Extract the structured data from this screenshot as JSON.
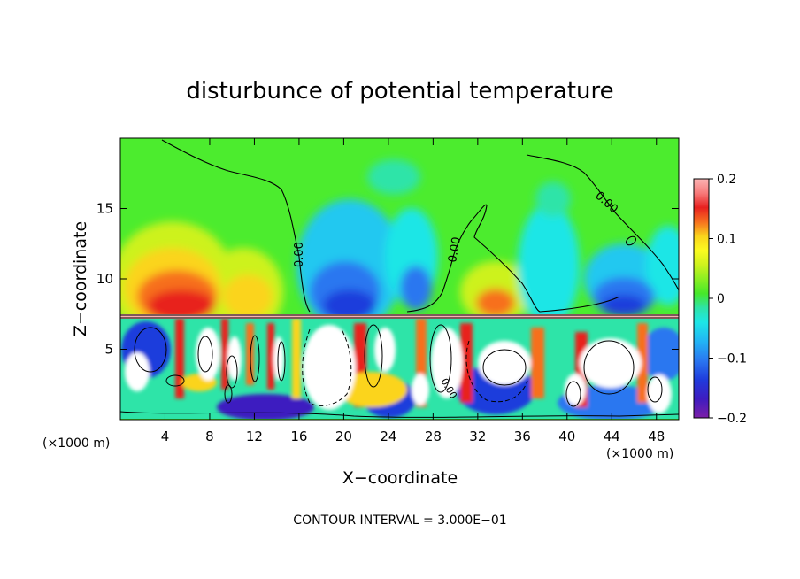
{
  "chart_data": {
    "type": "heatmap",
    "title": "disturbunce of potential temperature",
    "xlabel": "X−coordinate",
    "ylabel": "Z−coordinate",
    "x_unit_label_left": "(×1000 m)",
    "x_unit_label_right": "(×1000 m)",
    "xlim": [
      0,
      50
    ],
    "ylim": [
      0,
      20
    ],
    "x_ticks": [
      4,
      8,
      12,
      16,
      20,
      24,
      28,
      32,
      36,
      40,
      44,
      48
    ],
    "x_tick_labels": [
      "4",
      "8",
      "12",
      "16",
      "20",
      "24",
      "28",
      "32",
      "36",
      "40",
      "44",
      "48"
    ],
    "y_ticks": [
      5,
      10,
      15
    ],
    "y_tick_labels": [
      "5",
      "10",
      "15"
    ],
    "colorbar": {
      "range": [
        -0.2,
        0.2
      ],
      "tick_values": [
        0.2,
        0.1,
        0,
        -0.1,
        -0.2
      ],
      "tick_labels": [
        "0.2",
        "0.1",
        "0",
        "−0.1",
        "−0.2"
      ],
      "colors": [
        "#7c1fa8",
        "#3e1cc0",
        "#1f3cdc",
        "#2a77f0",
        "#22b4f5",
        "#1de6e6",
        "#2ee4a8",
        "#2edc52",
        "#46e82a",
        "#8aef22",
        "#cdf21e",
        "#fbfb20",
        "#fbd41c",
        "#fba41c",
        "#f7701f",
        "#f03a22",
        "#e8201f",
        "#f77a7a",
        "#fbb4b4"
      ]
    },
    "contour_labels": [
      "0.00",
      "0.00",
      "0.00",
      "0.00"
    ],
    "contour_interval_text": "CONTOUR INTERVAL = 3.000E−01",
    "colors": {
      "background_field": "#4cec2e",
      "warm_anomaly": "#e8201f",
      "cold_anomaly": "#1f3cdc"
    }
  }
}
